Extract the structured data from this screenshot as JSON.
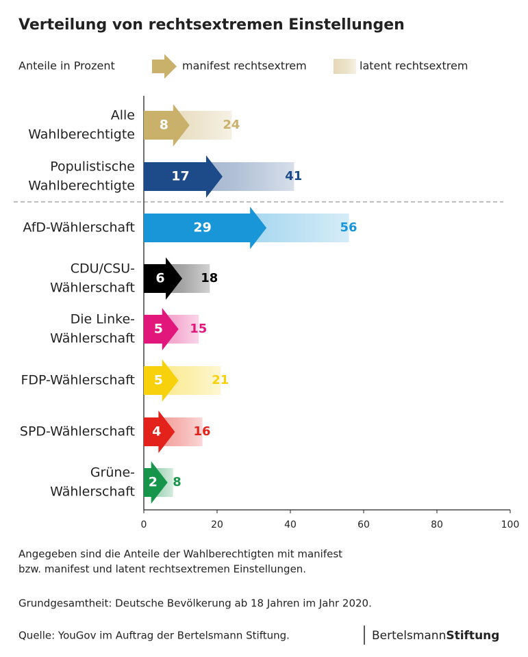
{
  "chart_data": {
    "type": "arrow-bar",
    "title": "Verteilung von rechtsextremen Einstellungen",
    "subtitle": "Anteile in Prozent",
    "categories": [
      [
        "Alle",
        "Wahlberechtigte"
      ],
      [
        "Populistische",
        "Wahlberechtigte"
      ],
      [
        "AfD-Wählerschaft"
      ],
      [
        "CDU/CSU-",
        "Wählerschaft"
      ],
      [
        "Die Linke-",
        "Wählerschaft"
      ],
      [
        "FDP-Wählerschaft"
      ],
      [
        "SPD-Wählerschaft"
      ],
      [
        "Grüne-",
        "Wählerschaft"
      ]
    ],
    "colors": [
      "#c9b06b",
      "#1d4a89",
      "#1896d7",
      "#000000",
      "#e2177c",
      "#f6d10c",
      "#e3231b",
      "#17964b"
    ],
    "series": [
      {
        "name": "manifest rechtsextrem",
        "values": [
          8,
          17,
          29,
          6,
          5,
          5,
          4,
          2
        ]
      },
      {
        "name": "latent rechtsextrem",
        "values": [
          24,
          41,
          56,
          18,
          15,
          21,
          16,
          8
        ]
      }
    ],
    "xlim": [
      0,
      100
    ],
    "xticks": [
      0,
      20,
      40,
      60,
      80,
      100
    ],
    "notes": [
      "Angegeben sind die Anteile der Wahlberechtigten mit manifest",
      "bzw. manifest und latent rechtsextremen Einstellungen."
    ],
    "basis": "Grundgesamtheit: Deutsche Bevölkerung ab 18 Jahren im Jahr 2020.",
    "source": "Quelle: YouGov im Auftrag der Bertelsmann Stiftung.",
    "logo": [
      "Bertelsmann",
      "Stiftung"
    ]
  }
}
